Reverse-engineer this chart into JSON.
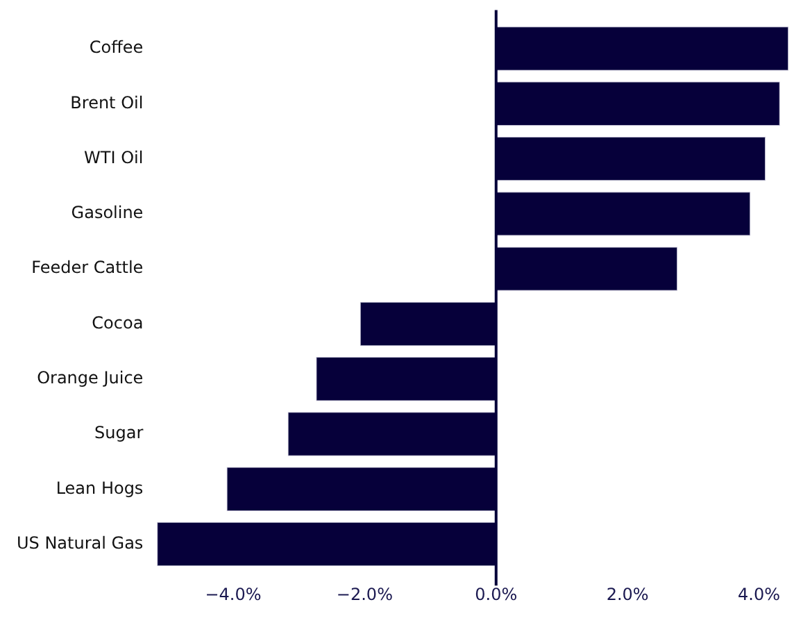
{
  "chart_data": {
    "type": "bar",
    "orientation": "horizontal",
    "categories": [
      "Coffee",
      "Brent Oil",
      "WTI Oil",
      "Gasoline",
      "Feeder Cattle",
      "Cocoa",
      "Orange Juice",
      "Sugar",
      "Lean Hogs",
      "US Natural Gas"
    ],
    "values": [
      4.45,
      4.32,
      4.1,
      3.87,
      2.76,
      -2.07,
      -2.74,
      -3.17,
      -4.1,
      -5.16
    ],
    "color": "#06003a",
    "xlim": [
      -5.2,
      4.45
    ],
    "xticks": [
      {
        "value": -4,
        "label": "−4.0%"
      },
      {
        "value": -2,
        "label": "−2.0%"
      },
      {
        "value": 0,
        "label": "0.0%"
      },
      {
        "value": 2,
        "label": "2.0%"
      },
      {
        "value": 4,
        "label": "4.0%"
      }
    ],
    "ref_lines": [
      {
        "axis": "x",
        "value": 0,
        "color": "#06003a"
      }
    ],
    "grid": false,
    "legend": false
  }
}
